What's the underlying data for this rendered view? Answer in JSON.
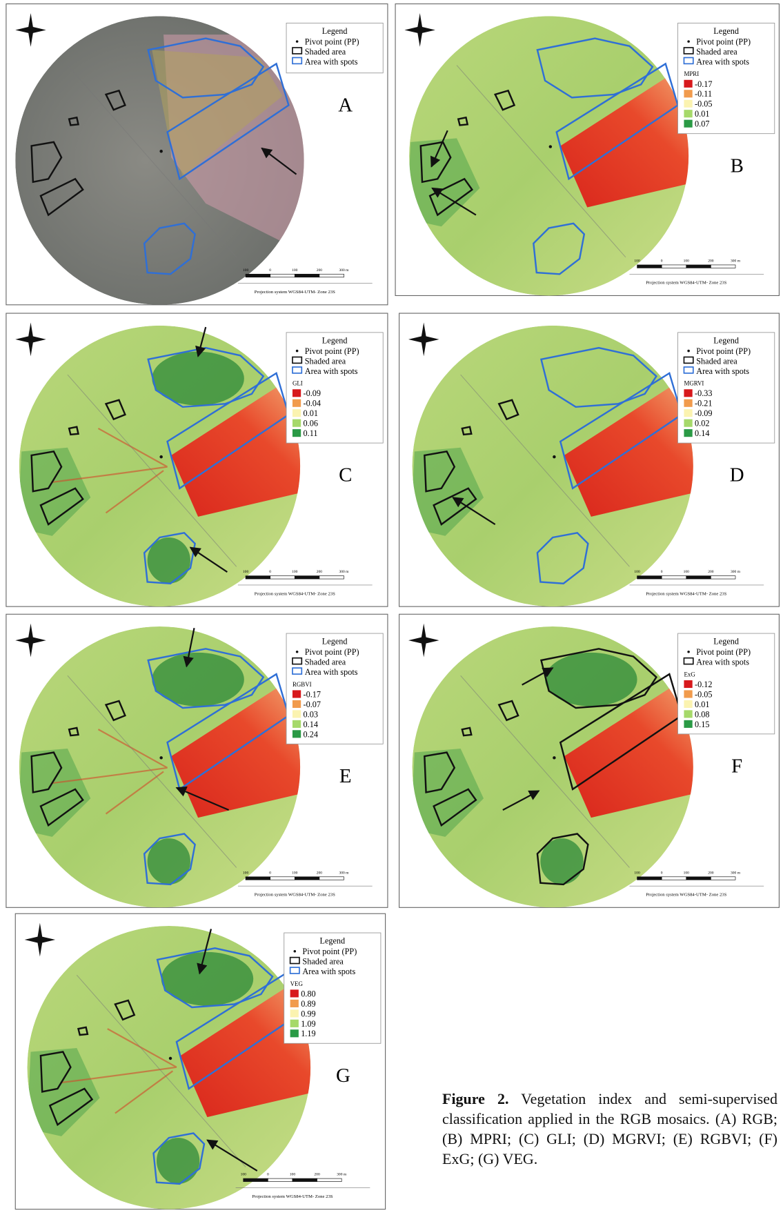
{
  "figure": {
    "panels": [
      {
        "letter": "A",
        "legend": {
          "title": "Legend",
          "items": [
            "Pivot point (PP)",
            "Shaded area",
            "Area with spots"
          ]
        },
        "scale": [
          "100",
          "0",
          "100",
          "200",
          "300 m"
        ],
        "projection": "Projection system WGS84-UTM- Zone 23S"
      },
      {
        "letter": "B",
        "legend": {
          "title": "Legend",
          "items": [
            "Pivot point (PP)",
            "Shaded area",
            "Area with spots"
          ],
          "index": "MPRI",
          "classes": [
            "-0.17",
            "-0.11",
            "-0.05",
            "0.01",
            "0.07"
          ]
        },
        "scale": [
          "100",
          "0",
          "100",
          "200",
          "300 m"
        ],
        "projection": "Projection system WGS84-UTM- Zone 23S"
      },
      {
        "letter": "C",
        "legend": {
          "title": "Legend",
          "items": [
            "Pivot point (PP)",
            "Shaded area",
            "Area with spots"
          ],
          "index": "GLI",
          "classes": [
            "-0.09",
            "-0.04",
            "0.01",
            "0.06",
            "0.11"
          ]
        },
        "scale": [
          "100",
          "0",
          "100",
          "200",
          "300 m"
        ],
        "projection": "Projection system WGS84-UTM- Zone 23S"
      },
      {
        "letter": "D",
        "legend": {
          "title": "Legend",
          "items": [
            "Pivot point (PP)",
            "Shaded area",
            "Area with spots"
          ],
          "index": "MGRVI",
          "classes": [
            "-0.33",
            "-0.21",
            "-0.09",
            "0.02",
            "0.14"
          ]
        },
        "scale": [
          "100",
          "0",
          "100",
          "200",
          "300 m"
        ],
        "projection": "Projection system WGS84-UTM- Zone 23S"
      },
      {
        "letter": "E",
        "legend": {
          "title": "Legend",
          "items": [
            "Pivot point (PP)",
            "Shaded area",
            "Area with spots"
          ],
          "index": "RGBVI",
          "classes": [
            "-0.17",
            "-0.07",
            "0.03",
            "0.14",
            "0.24"
          ]
        },
        "scale": [
          "100",
          "0",
          "100",
          "200",
          "300 m"
        ],
        "projection": "Projection system WGS84-UTM- Zone 23S"
      },
      {
        "letter": "F",
        "legend": {
          "title": "Legend",
          "items": [
            "Pivot point (PP)",
            "Area with spots"
          ],
          "index": "ExG",
          "classes": [
            "-0.12",
            "-0.05",
            "0.01",
            "0.08",
            "0.15"
          ]
        },
        "scale": [
          "100",
          "0",
          "100",
          "200",
          "300 m"
        ],
        "projection": "Projection system WGS84-UTM- Zone 23S"
      },
      {
        "letter": "G",
        "legend": {
          "title": "Legend",
          "items": [
            "Pivot point (PP)",
            "Shaded area",
            "Area with spots"
          ],
          "index": "VEG",
          "classes": [
            "0.80",
            "0.89",
            "0.99",
            "1.09",
            "1.19"
          ]
        },
        "scale": [
          "100",
          "0",
          "100",
          "200",
          "300 m"
        ],
        "projection": "Projection system WGS84-UTM- Zone 23S"
      }
    ],
    "caption": {
      "label": "Figure 2.",
      "text": "Vegetation index and semi-supervised classification applied in the RGB mosaics. (A) RGB; (B) MPRI; (C) GLI; (D) MGRVI; (E) RGBVI; (F) ExG; (G) VEG."
    }
  }
}
